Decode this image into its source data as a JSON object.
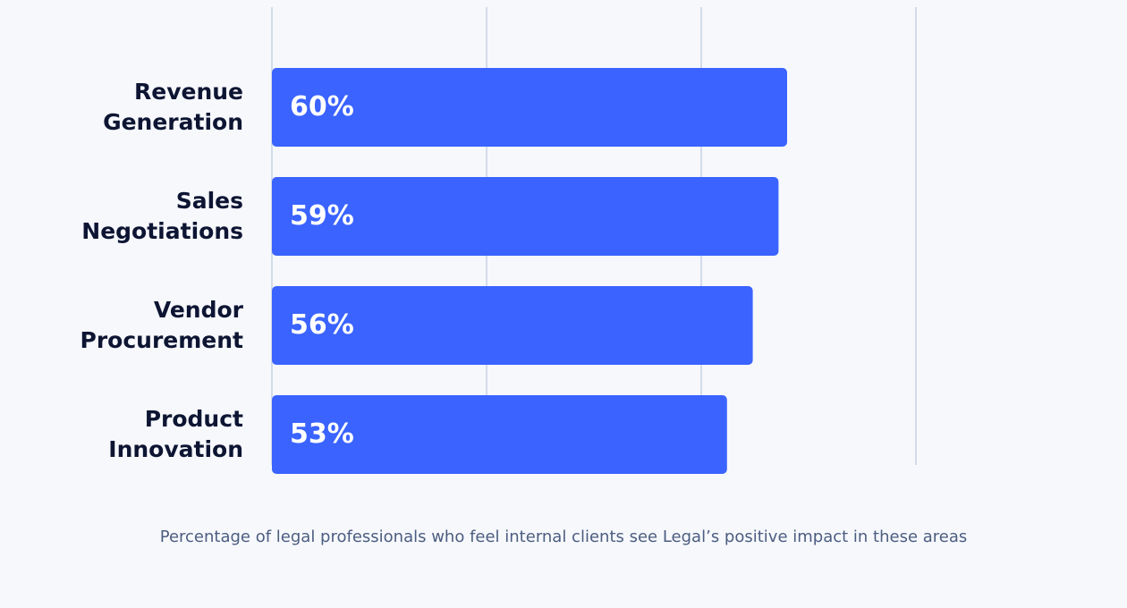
{
  "chart_data": {
    "type": "bar",
    "orientation": "horizontal",
    "categories": [
      "Revenue Generation",
      "Sales Negotiations",
      "Vendor Procurement",
      "Product Innovation"
    ],
    "values": [
      60,
      59,
      56,
      53
    ],
    "value_labels": [
      "60%",
      "59%",
      "56%",
      "53%"
    ],
    "color": "#3a63ff",
    "xlim": [
      0,
      75
    ],
    "xticks": [
      0,
      25,
      50,
      75
    ],
    "grid": true,
    "caption": "Percentage of legal professionals who feel internal clients see Legal’s positive impact in these areas"
  }
}
